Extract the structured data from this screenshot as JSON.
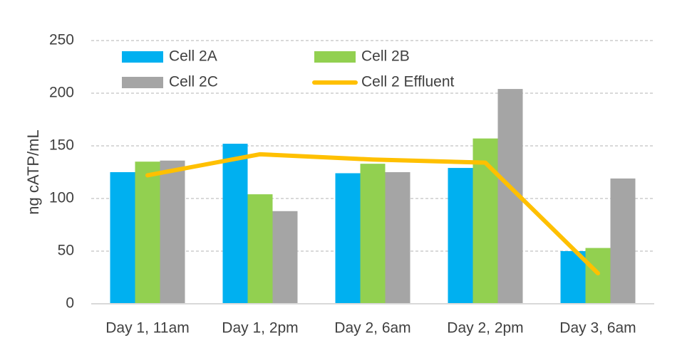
{
  "chart_data": {
    "type": "bar",
    "title": "",
    "xlabel": "",
    "ylabel": "ng cATP/mL",
    "ylim": [
      0,
      250
    ],
    "yticks": [
      0,
      50,
      100,
      150,
      200,
      250
    ],
    "grid": true,
    "legend_position": "top-left",
    "categories": [
      "Day 1, 11am",
      "Day 1, 2pm",
      "Day 2, 6am",
      "Day 2, 2pm",
      "Day 3, 6am"
    ],
    "series": [
      {
        "name": "Cell 2A",
        "kind": "bar",
        "color": "#00B0F0",
        "values": [
          125,
          152,
          124,
          129,
          50
        ]
      },
      {
        "name": "Cell 2B",
        "kind": "bar",
        "color": "#92D050",
        "values": [
          135,
          104,
          133,
          157,
          53
        ]
      },
      {
        "name": "Cell 2C",
        "kind": "bar",
        "color": "#A5A5A5",
        "values": [
          136,
          88,
          125,
          204,
          119
        ]
      },
      {
        "name": "Cell 2 Effluent",
        "kind": "line",
        "color": "#FFC000",
        "values": [
          122,
          142,
          137,
          134,
          29
        ]
      }
    ]
  }
}
